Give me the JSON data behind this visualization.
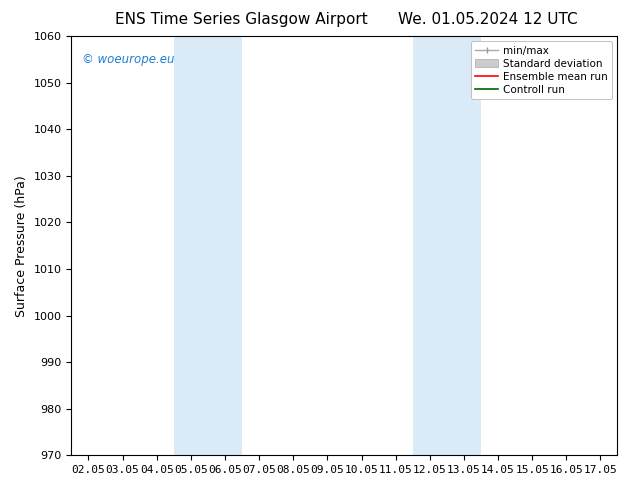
{
  "title_left": "ENS Time Series Glasgow Airport",
  "title_right": "We. 01.05.2024 12 UTC",
  "ylabel": "Surface Pressure (hPa)",
  "ylim": [
    970,
    1060
  ],
  "yticks": [
    970,
    980,
    990,
    1000,
    1010,
    1020,
    1030,
    1040,
    1050,
    1060
  ],
  "x_labels": [
    "02.05",
    "03.05",
    "04.05",
    "05.05",
    "06.05",
    "07.05",
    "08.05",
    "09.05",
    "10.05",
    "11.05",
    "12.05",
    "13.05",
    "14.05",
    "15.05",
    "16.05",
    "17.05"
  ],
  "x_positions": [
    0,
    1,
    2,
    3,
    4,
    5,
    6,
    7,
    8,
    9,
    10,
    11,
    12,
    13,
    14,
    15
  ],
  "xlim": [
    -0.5,
    15.5
  ],
  "shaded_bands": [
    {
      "x_start": 2.5,
      "x_end": 4.5,
      "color": "#daeaf6"
    },
    {
      "x_start": 9.5,
      "x_end": 11.5,
      "color": "#daeaf6"
    }
  ],
  "watermark_text": "© woeurope.eu",
  "watermark_color": "#1e7fd4",
  "bg_color": "#ffffff",
  "plot_bg_color": "#ffffff",
  "title_fontsize": 11,
  "tick_fontsize": 8,
  "label_fontsize": 9,
  "legend_fontsize": 7.5
}
